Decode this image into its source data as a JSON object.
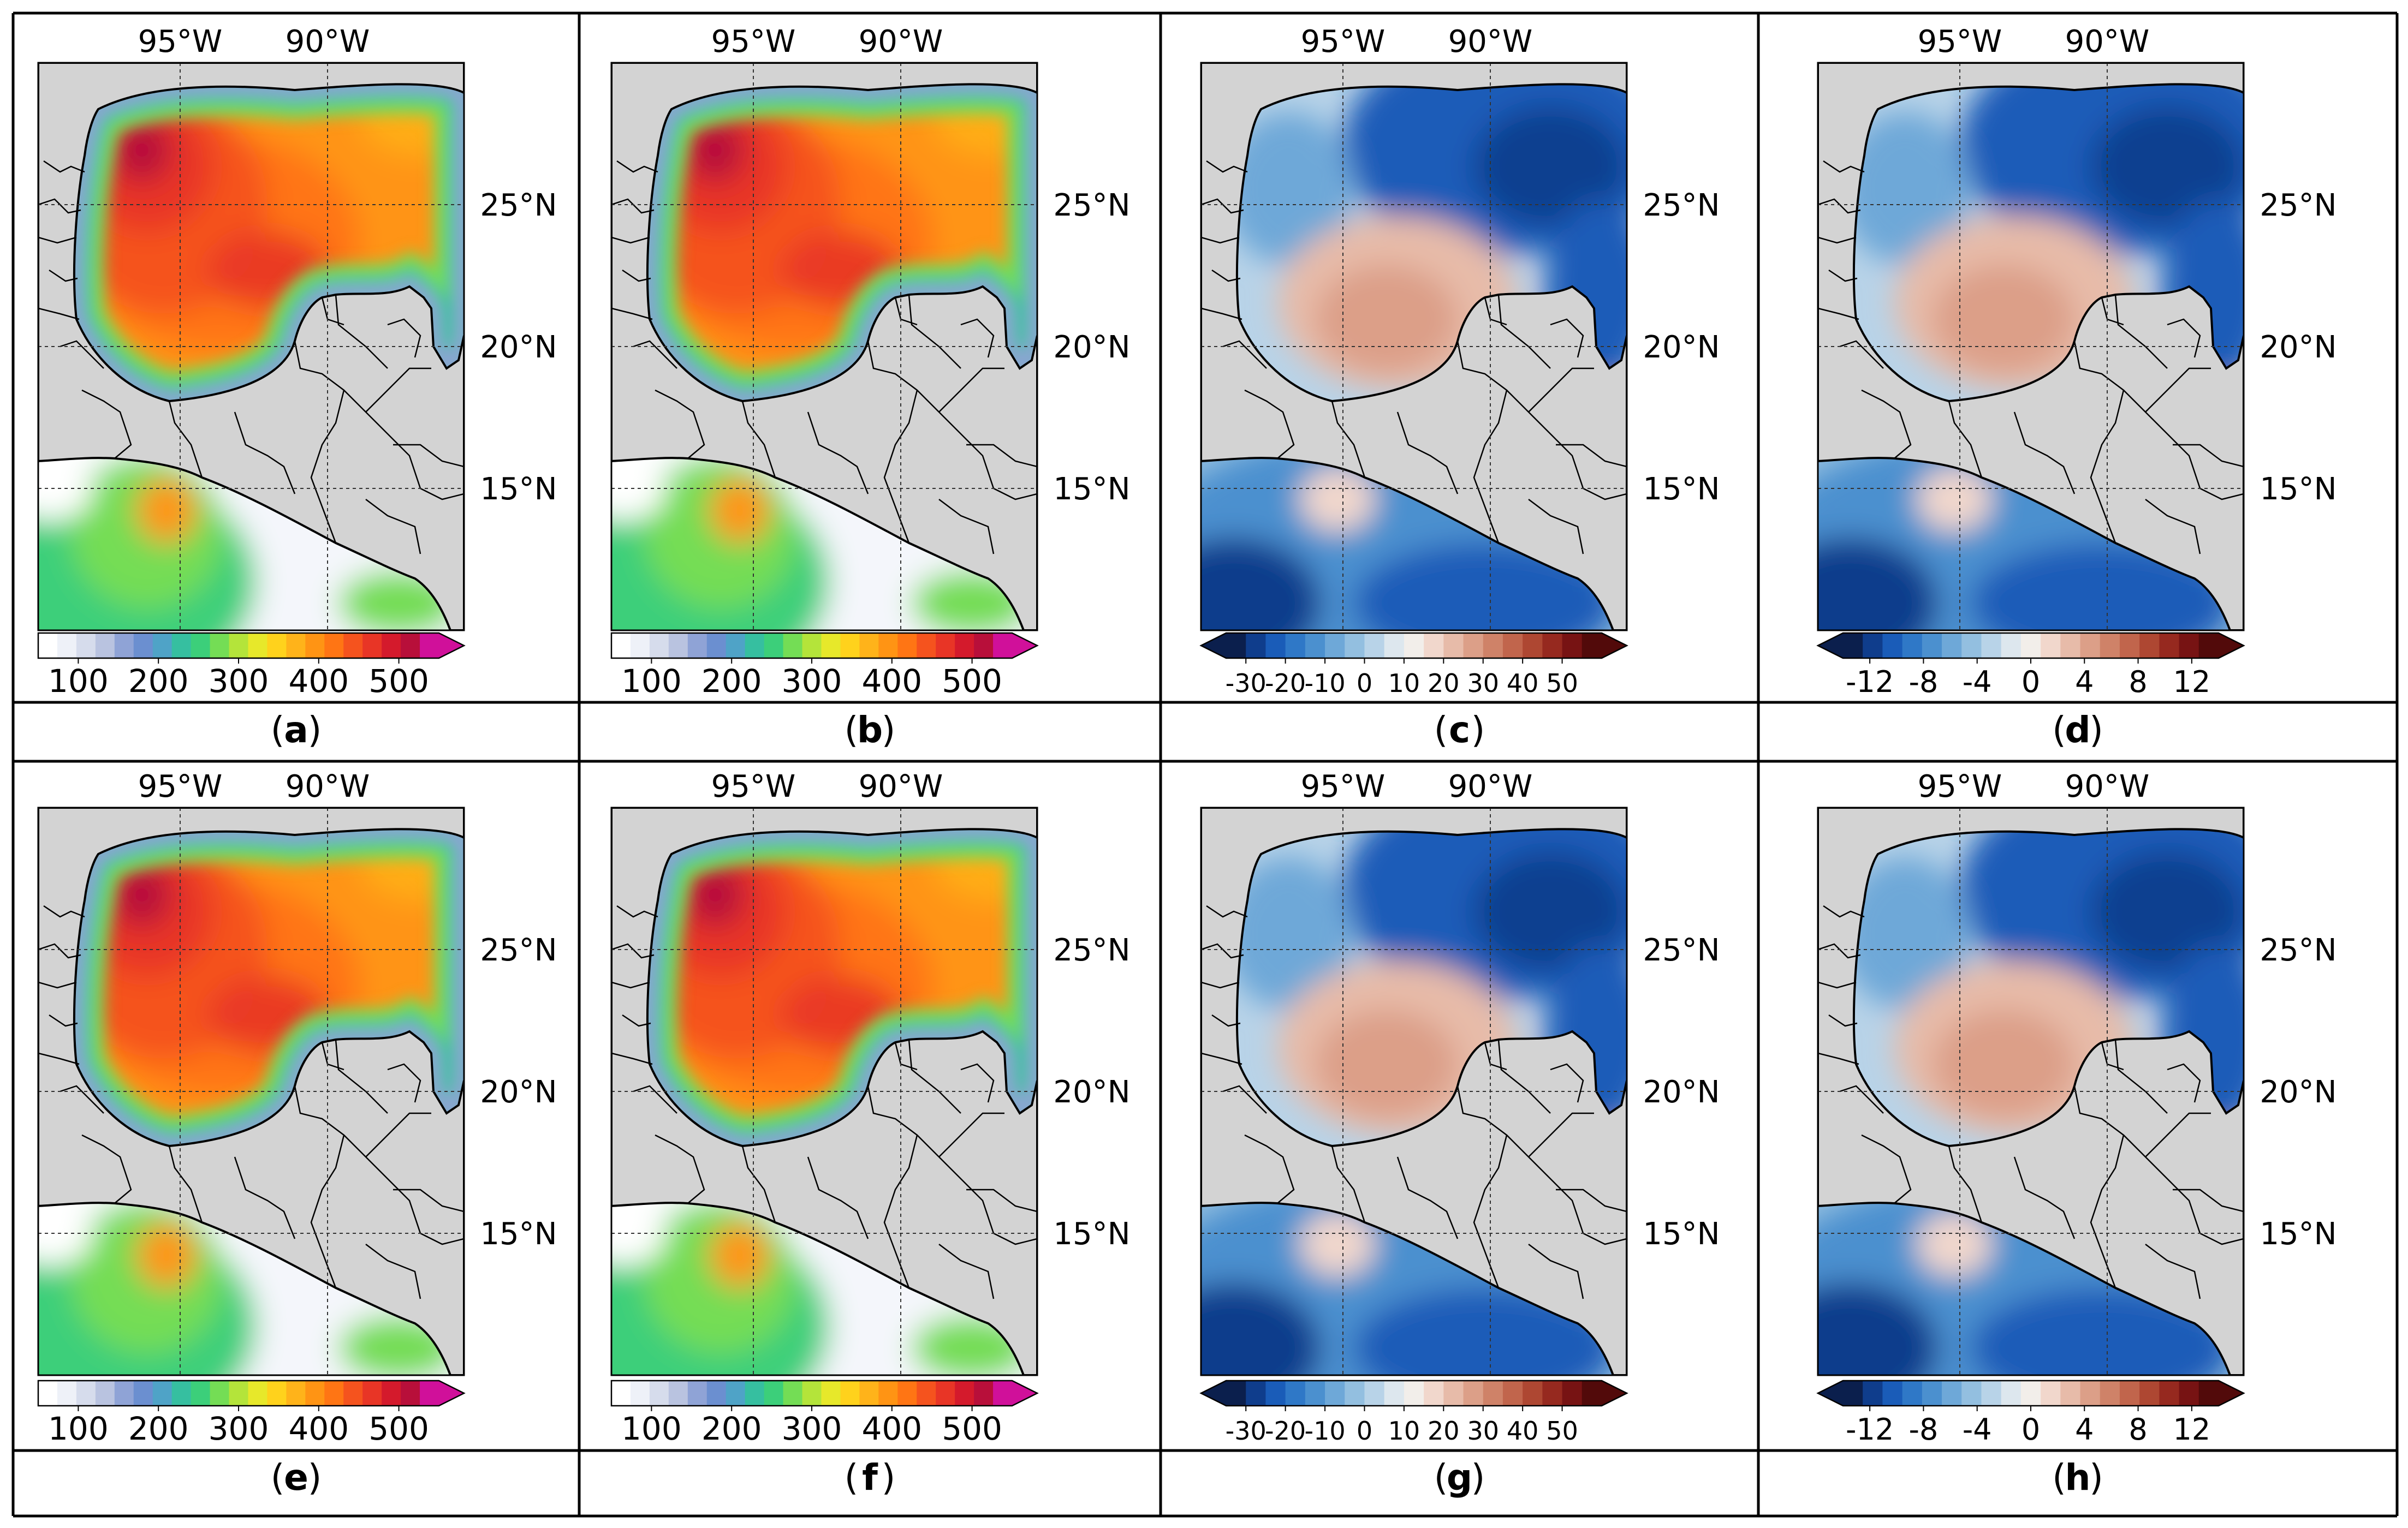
{
  "figure": {
    "axis_labels": {
      "lon": [
        "95°W",
        "90°W"
      ],
      "lat": [
        "25°N",
        "20°N",
        "15°N"
      ]
    },
    "colorbars": {
      "magnitude": {
        "ticks": [
          "100",
          "200",
          "300",
          "400",
          "500"
        ],
        "range": [
          50,
          550
        ],
        "colors": [
          "#ffffff",
          "#eef1f8",
          "#d6dcec",
          "#b9c3e0",
          "#8fa3d6",
          "#6b8fd0",
          "#4fa3c7",
          "#36bfa0",
          "#3ccf7a",
          "#74dd55",
          "#b4e43a",
          "#e7e82a",
          "#ffd21c",
          "#ffb31a",
          "#ff9414",
          "#ff7514",
          "#f5531e",
          "#e83526",
          "#d41a2c",
          "#b80f3a",
          "#d0109a"
        ]
      },
      "diff_large": {
        "ticks": [
          "-30",
          "-20",
          "-10",
          "0",
          "10",
          "20",
          "30",
          "40",
          "50"
        ],
        "range": [
          -35,
          60
        ],
        "colors": [
          "#0b1f4d",
          "#0f3d8c",
          "#1a5cb8",
          "#2f78c7",
          "#4b90cf",
          "#6ea8d8",
          "#93bfe0",
          "#b8d3e8",
          "#dde7ee",
          "#f2eeea",
          "#f1d7cc",
          "#e7bba9",
          "#dc9f88",
          "#cf8268",
          "#c1654c",
          "#ae4732",
          "#96291f",
          "#771313",
          "#520a0a"
        ]
      },
      "diff_small": {
        "ticks": [
          "-12",
          "-8",
          "-4",
          "0",
          "4",
          "8",
          "12"
        ],
        "range": [
          -14,
          14
        ],
        "colors": [
          "#0b1f4d",
          "#0f3d8c",
          "#1a5cb8",
          "#2f78c7",
          "#4b90cf",
          "#6ea8d8",
          "#93bfe0",
          "#b8d3e8",
          "#dde7ee",
          "#f2eeea",
          "#f1d7cc",
          "#e7bba9",
          "#dc9f88",
          "#cf8268",
          "#c1654c",
          "#ae4732",
          "#96291f",
          "#771313",
          "#520a0a"
        ]
      }
    },
    "panels": [
      {
        "label": "a",
        "colorbar": "magnitude"
      },
      {
        "label": "b",
        "colorbar": "magnitude"
      },
      {
        "label": "c",
        "colorbar": "diff_large"
      },
      {
        "label": "d",
        "colorbar": "diff_small"
      },
      {
        "label": "e",
        "colorbar": "magnitude"
      },
      {
        "label": "f",
        "colorbar": "magnitude"
      },
      {
        "label": "g",
        "colorbar": "diff_large"
      },
      {
        "label": "h",
        "colorbar": "diff_small"
      }
    ],
    "colors": {
      "land": "#d3d3d3",
      "border": "#000000",
      "table_line": "#000000"
    }
  }
}
